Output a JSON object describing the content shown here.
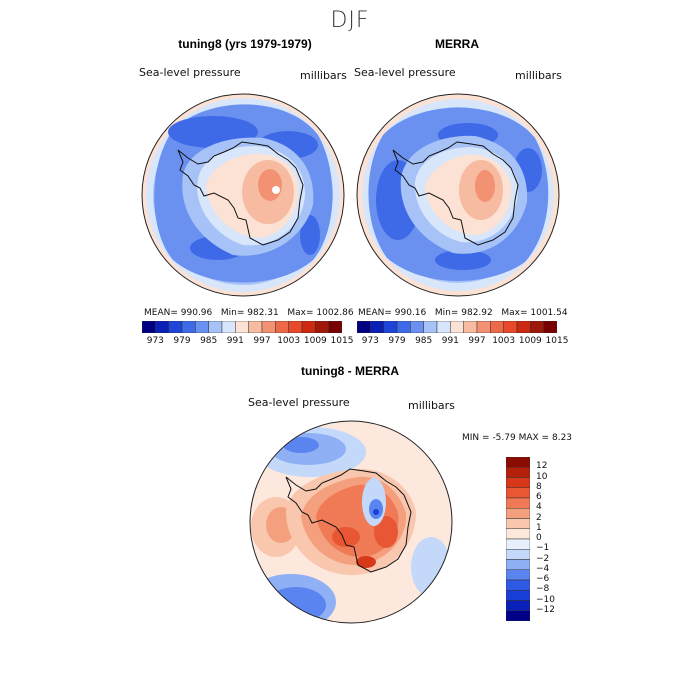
{
  "season": "DJF",
  "top_left": {
    "title": "tuning8 (yrs 1979-1979)",
    "variable": "Sea-level pressure",
    "units": "millibars",
    "stats": {
      "mean_label": "MEAN=",
      "mean": "990.96",
      "min_label": "Min=",
      "min": "982.31",
      "max_label": "Max=",
      "max": "1002.86"
    }
  },
  "top_right": {
    "title": "MERRA",
    "variable": "Sea-level pressure",
    "units": "millibars",
    "stats": {
      "mean_label": "MEAN=",
      "mean": "990.16",
      "min_label": "Min=",
      "min": "982.92",
      "max_label": "Max=",
      "max": "1001.54"
    }
  },
  "top_colorbar": {
    "colors": [
      "#000080",
      "#0a1fb8",
      "#1f45d8",
      "#3e6ae8",
      "#6a90f0",
      "#a6c2f7",
      "#d8e6fb",
      "#fbe2d4",
      "#f6bba0",
      "#f29273",
      "#ed6a48",
      "#e8492a",
      "#cc2a10",
      "#a01808",
      "#780000"
    ],
    "tick_labels": [
      "973",
      "979",
      "985",
      "991",
      "997",
      "1003",
      "1009",
      "1015"
    ]
  },
  "bottom": {
    "title": "tuning8 - MERRA",
    "variable": "Sea-level pressure",
    "units": "millibars",
    "min_label": "MIN =",
    "min": "-5.79",
    "max_label": "MAX =",
    "max": "8.23"
  },
  "diff_colorbar": {
    "colors": [
      "#000088",
      "#0a20b8",
      "#1a3ed8",
      "#2f5ae6",
      "#5a84ef",
      "#8fb0f5",
      "#c4d8fa",
      "#e8f0fd",
      "#fde8dd",
      "#f9c6ae",
      "#f4a07f",
      "#ef7a55",
      "#e95634",
      "#d8381a",
      "#b4200a",
      "#8a0c02"
    ],
    "tick_labels": [
      "12",
      "10",
      "8",
      "6",
      "4",
      "2",
      "1",
      "0",
      "−1",
      "−2",
      "−4",
      "−6",
      "−8",
      "−10",
      "−12"
    ]
  }
}
